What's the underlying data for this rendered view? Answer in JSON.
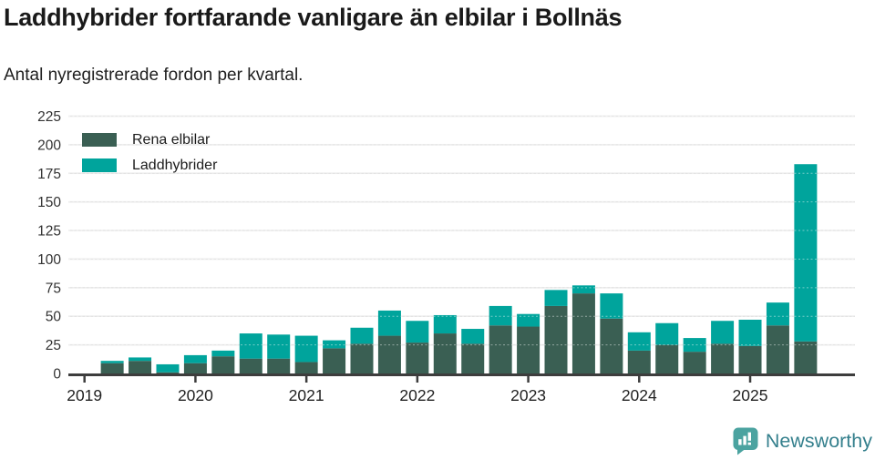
{
  "header": {
    "title": "Laddhybrider fortfarande vanligare än elbilar i Bollnäs",
    "subtitle": "Antal nyregistrerade fordon per kvartal."
  },
  "legend": {
    "items": [
      {
        "label": "Rena elbilar",
        "color": "#3a5f53"
      },
      {
        "label": "Laddhybrider",
        "color": "#00a49c"
      }
    ]
  },
  "chart_data": {
    "type": "bar",
    "stacked": true,
    "title": "Laddhybrider fortfarande vanligare än elbilar i Bollnäs",
    "subtitle": "Antal nyregistrerade fordon per kvartal.",
    "x": [
      "2019-Q2",
      "2019-Q3",
      "2019-Q4",
      "2020-Q1",
      "2020-Q2",
      "2020-Q3",
      "2020-Q4",
      "2021-Q1",
      "2021-Q2",
      "2021-Q3",
      "2021-Q4",
      "2022-Q1",
      "2022-Q2",
      "2022-Q3",
      "2022-Q4",
      "2023-Q1",
      "2023-Q2",
      "2023-Q3",
      "2023-Q4",
      "2024-Q1",
      "2024-Q2",
      "2024-Q3",
      "2024-Q4",
      "2025-Q1",
      "2025-Q2",
      "2025-Q3"
    ],
    "series": [
      {
        "name": "Rena elbilar",
        "color": "#3a5f53",
        "values": [
          9,
          11,
          1,
          9,
          15,
          13,
          13,
          10,
          22,
          26,
          33,
          27,
          35,
          26,
          42,
          41,
          59,
          70,
          48,
          20,
          25,
          19,
          26,
          24,
          42,
          28
        ]
      },
      {
        "name": "Laddhybrider",
        "color": "#00a49c",
        "values": [
          2,
          3,
          7,
          7,
          5,
          22,
          21,
          23,
          7,
          14,
          22,
          19,
          16,
          13,
          17,
          11,
          14,
          7,
          22,
          16,
          19,
          12,
          20,
          23,
          20,
          155
        ]
      }
    ],
    "xtick_labels": [
      "2019",
      "2020",
      "2021",
      "2022",
      "2023",
      "2024",
      "2025"
    ],
    "ylim": [
      0,
      225
    ],
    "ytick_step": 25,
    "grid": true,
    "legend_position": "top-left",
    "colors": {
      "axis": "#3d3d3d",
      "gridline": "#e4e4e4",
      "tick_label": "#333333",
      "xtick_label": "#222222"
    }
  },
  "footer": {
    "brand": "Newsworthy",
    "logo_icon": "speech-bubble-bar-chart-icon",
    "brand_text_color": "#35808d",
    "bubble_color": "#4ba3a0"
  }
}
